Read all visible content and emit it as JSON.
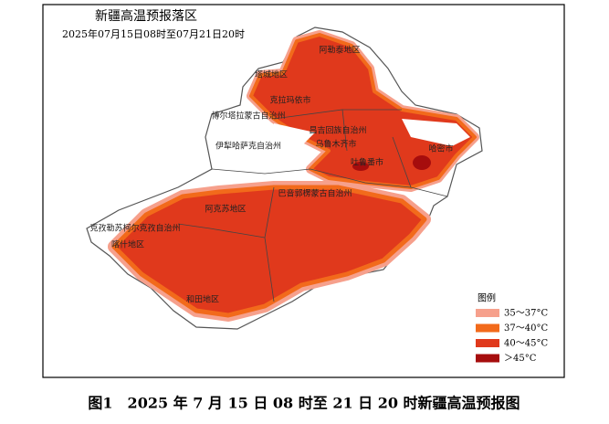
{
  "map": {
    "title": "新疆高温预报落区",
    "subtitle": "2025年07月15日08时至07月21日20时",
    "regions": [
      "阿勒泰地区",
      "塔城地区",
      "克拉玛依市",
      "博尔塔拉蒙古自治州",
      "昌吉回族自治州",
      "伊犁哈萨克自治州",
      "乌鲁木齐市",
      "哈密市",
      "吐鲁番市",
      "巴音郭楞蒙古自治州",
      "阿克苏地区",
      "克孜勒苏柯尔克孜自治州",
      "喀什地区",
      "和田地区"
    ],
    "legend": {
      "title": "图例",
      "items": [
        {
          "label": "35～37°C",
          "color": "#f6a08c"
        },
        {
          "label": "37～40°C",
          "color": "#f26a1b"
        },
        {
          "label": "40～45°C",
          "color": "#e0391c"
        },
        {
          "label": "＞45°C",
          "color": "#a60d0d"
        }
      ]
    }
  },
  "caption": "图1　2025 年 7 月 15 日 08 时至 21 日 20 时新疆高温预报图"
}
